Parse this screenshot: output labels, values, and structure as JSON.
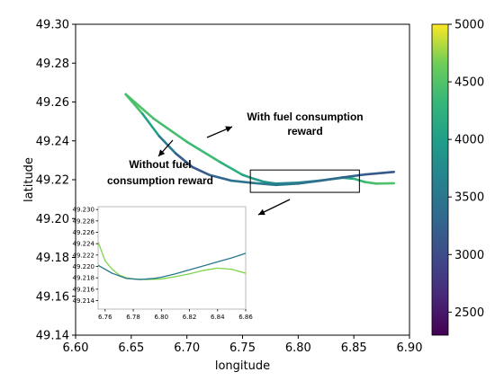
{
  "chart_data": {
    "type": "line",
    "xlabel": "longitude",
    "ylabel": "latitude",
    "xlim": [
      6.6,
      6.9
    ],
    "ylim": [
      49.14,
      49.3
    ],
    "xticks": [
      "6.60",
      "6.65",
      "6.70",
      "6.75",
      "6.80",
      "6.85",
      "6.90"
    ],
    "yticks": [
      "49.14",
      "49.16",
      "49.18",
      "49.20",
      "49.22",
      "49.24",
      "49.26",
      "49.28",
      "49.30"
    ],
    "grid": false,
    "colorbar": {
      "colormap": "viridis",
      "range": [
        2300,
        5000
      ],
      "ticks": [
        "2500",
        "3000",
        "3500",
        "4000",
        "4500",
        "5000"
      ]
    },
    "series": [
      {
        "name": "With fuel consumption reward",
        "x": [
          6.645,
          6.67,
          6.7,
          6.73,
          6.75,
          6.76,
          6.77,
          6.78,
          6.8,
          6.82,
          6.84,
          6.85,
          6.86,
          6.87,
          6.886
        ],
        "y": [
          49.264,
          49.2515,
          49.2395,
          49.229,
          49.2225,
          49.2205,
          49.2188,
          49.218,
          49.2185,
          49.2196,
          49.221,
          49.2205,
          49.2188,
          49.218,
          49.2182
        ],
        "color_values": [
          4500,
          4450,
          4400,
          4350,
          4100,
          4000,
          3900,
          3800,
          3700,
          3750,
          3950,
          4200,
          4400,
          4450,
          4500
        ]
      },
      {
        "name": "Without fuel consumption reward",
        "x": [
          6.645,
          6.66,
          6.675,
          6.69,
          6.705,
          6.72,
          6.74,
          6.76,
          6.78,
          6.8,
          6.82,
          6.84,
          6.86,
          6.886
        ],
        "y": [
          49.264,
          49.254,
          49.2425,
          49.2335,
          49.2265,
          49.2225,
          49.2195,
          49.2183,
          49.2173,
          49.218,
          49.2195,
          49.2212,
          49.2227,
          49.224
        ],
        "color_values": [
          4600,
          4300,
          3800,
          3300,
          3100,
          3200,
          3400,
          3500,
          3600,
          3500,
          3400,
          3300,
          3200,
          3100
        ]
      }
    ],
    "zoom_box": {
      "x": [
        6.757,
        6.855
      ],
      "y": [
        49.2135,
        49.225
      ]
    },
    "inset": {
      "xlim": [
        6.755,
        6.86
      ],
      "ylim": [
        49.2125,
        49.2305
      ],
      "xticks": [
        "6.76",
        "6.78",
        "6.80",
        "6.82",
        "6.84",
        "6.86"
      ],
      "yticks": [
        "49.214",
        "49.216",
        "49.218",
        "49.220",
        "49.222",
        "49.224",
        "49.226",
        "49.228",
        "49.230"
      ],
      "series": [
        {
          "x": [
            6.755,
            6.76,
            6.765,
            6.77,
            6.775,
            6.78,
            6.79,
            6.8,
            6.81,
            6.82,
            6.83,
            6.84,
            6.85,
            6.86
          ],
          "y": [
            49.2243,
            49.221,
            49.2195,
            49.2185,
            49.218,
            49.2178,
            49.2177,
            49.2178,
            49.2182,
            49.2187,
            49.2193,
            49.2197,
            49.2195,
            49.2188
          ],
          "color": "#7ed34b"
        },
        {
          "x": [
            6.755,
            6.765,
            6.775,
            6.785,
            6.795,
            6.8,
            6.81,
            6.82,
            6.83,
            6.84,
            6.85,
            6.86
          ],
          "y": [
            49.2202,
            49.2188,
            49.2179,
            49.2177,
            49.2179,
            49.2181,
            49.2187,
            49.2194,
            49.2201,
            49.2208,
            49.2215,
            49.2223
          ],
          "color": "#2a788e"
        }
      ]
    },
    "annotations": {
      "with_fuel_line1": "With fuel consumption",
      "with_fuel_line2": "reward",
      "without_fuel_line1": "Without fuel",
      "without_fuel_line2": "consumption reward"
    }
  }
}
